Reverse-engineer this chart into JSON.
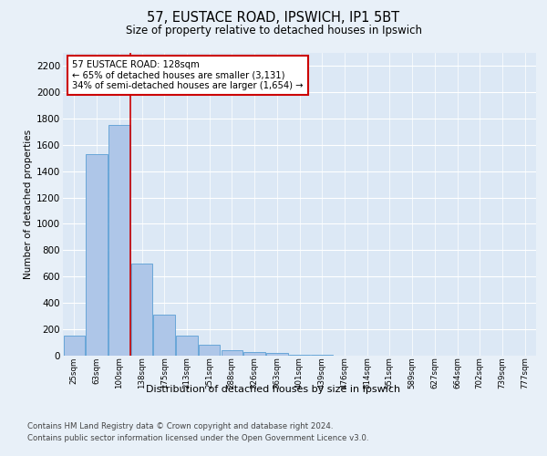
{
  "title1": "57, EUSTACE ROAD, IPSWICH, IP1 5BT",
  "title2": "Size of property relative to detached houses in Ipswich",
  "xlabel": "Distribution of detached houses by size in Ipswich",
  "ylabel": "Number of detached properties",
  "categories": [
    "25sqm",
    "63sqm",
    "100sqm",
    "138sqm",
    "175sqm",
    "213sqm",
    "251sqm",
    "288sqm",
    "326sqm",
    "363sqm",
    "401sqm",
    "439sqm",
    "476sqm",
    "514sqm",
    "551sqm",
    "589sqm",
    "627sqm",
    "664sqm",
    "702sqm",
    "739sqm",
    "777sqm"
  ],
  "values": [
    150,
    1530,
    1750,
    700,
    310,
    155,
    80,
    40,
    25,
    20,
    10,
    5,
    3,
    2,
    1,
    1,
    0,
    0,
    0,
    0,
    0
  ],
  "bar_color": "#aec6e8",
  "bar_edge_color": "#5a9fd4",
  "vline_x": 2.5,
  "vline_color": "#cc0000",
  "annotation_title": "57 EUSTACE ROAD: 128sqm",
  "annotation_line1": "← 65% of detached houses are smaller (3,131)",
  "annotation_line2": "34% of semi-detached houses are larger (1,654) →",
  "annotation_box_color": "#cc0000",
  "ylim": [
    0,
    2300
  ],
  "yticks": [
    0,
    200,
    400,
    600,
    800,
    1000,
    1200,
    1400,
    1600,
    1800,
    2000,
    2200
  ],
  "footnote1": "Contains HM Land Registry data © Crown copyright and database right 2024.",
  "footnote2": "Contains public sector information licensed under the Open Government Licence v3.0.",
  "bg_color": "#e8f0f8",
  "plot_bg_color": "#dce8f5"
}
